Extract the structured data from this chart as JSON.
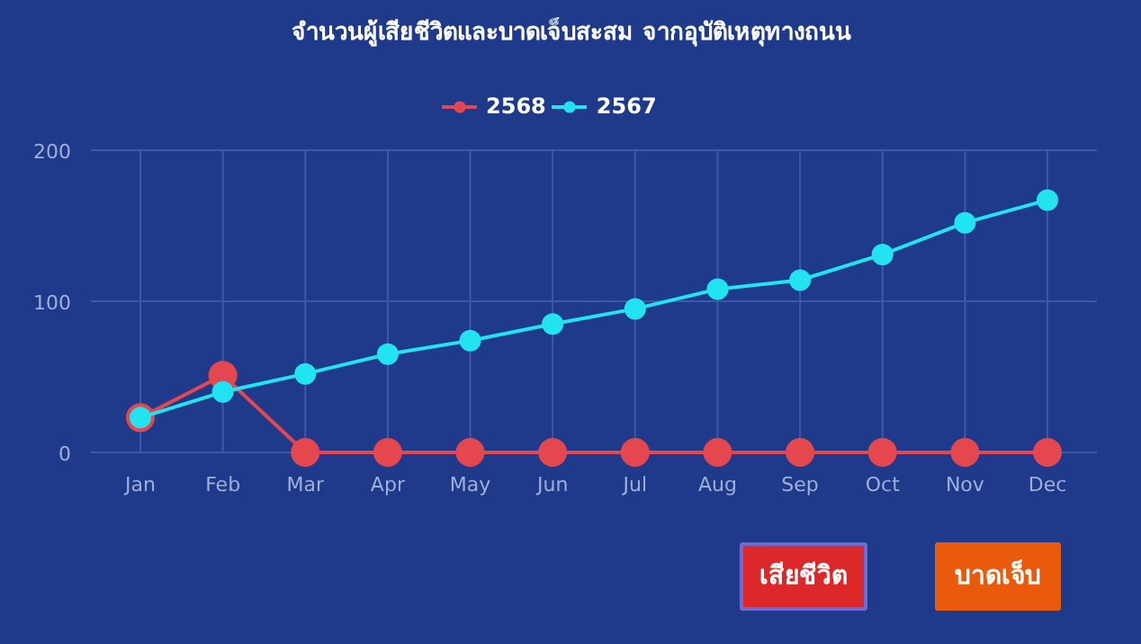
{
  "chart_data": {
    "type": "line",
    "title": "จำนวนผู้เสียชีวิตและบาดเจ็บสะสม จากอุบัติเหตุทางถนน",
    "categories": [
      "Jan",
      "Feb",
      "Mar",
      "Apr",
      "May",
      "Jun",
      "Jul",
      "Aug",
      "Sep",
      "Oct",
      "Nov",
      "Dec"
    ],
    "series": [
      {
        "name": "2568",
        "color": "#e5474f",
        "values": [
          23,
          51,
          0,
          0,
          0,
          0,
          0,
          0,
          0,
          0,
          0,
          0
        ]
      },
      {
        "name": "2567",
        "color": "#22e3f0",
        "values": [
          23,
          40,
          52,
          65,
          74,
          85,
          95,
          108,
          114,
          131,
          152,
          167
        ]
      }
    ],
    "ylim": [
      0,
      200
    ],
    "yticks": [
      0,
      100,
      200
    ],
    "grid": true,
    "legend": "top",
    "marker": "circle",
    "line_style": "solid",
    "annotations": [
      "เสียชีวิต",
      "บาดเจ็บ"
    ]
  }
}
